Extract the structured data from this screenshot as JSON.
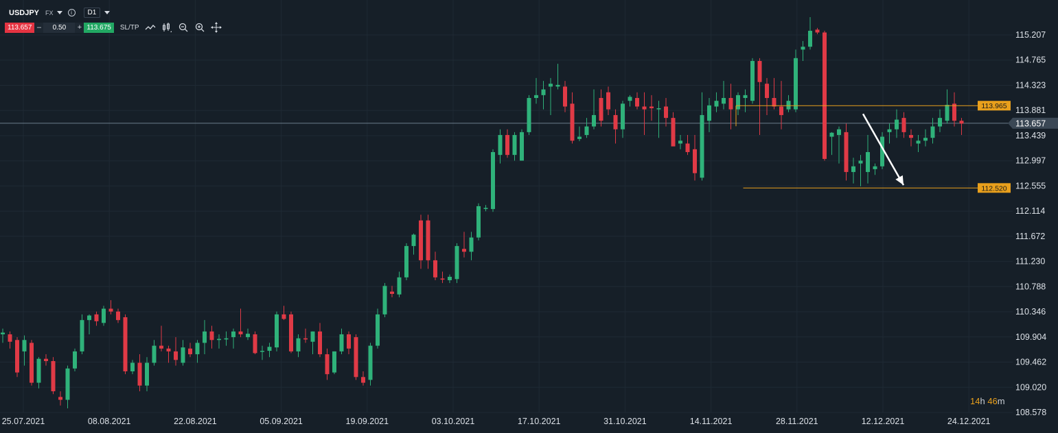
{
  "toolbar": {
    "symbol": "USDJPY",
    "market": "FX",
    "info_icon": "i",
    "timeframe": "D1",
    "bid": "113.657",
    "minus": "–",
    "lot": "0.50",
    "plus": "+",
    "ask": "113.675",
    "sltp": "SL/TP",
    "icons": [
      "line-chart-icon",
      "candles-icon",
      "zoom-out-icon",
      "zoom-in-icon",
      "crosshair-icon"
    ]
  },
  "countdown": {
    "hours": "14",
    "h_unit": "h",
    "minutes": "46",
    "m_unit": "m"
  },
  "chart_data": {
    "type": "candlestick",
    "symbol": "USDJPY",
    "timeframe": "D1",
    "y_ticks": [
      "115.207",
      "114.765",
      "114.323",
      "113.881",
      "113.439",
      "112.997",
      "112.555",
      "112.114",
      "111.672",
      "111.230",
      "110.788",
      "110.346",
      "109.904",
      "109.462",
      "109.020",
      "108.578"
    ],
    "ylim": [
      108.578,
      115.207
    ],
    "x_ticks": [
      "25.07.2021",
      "08.08.2021",
      "22.08.2021",
      "05.09.2021",
      "19.09.2021",
      "03.10.2021",
      "17.10.2021",
      "31.10.2021",
      "14.11.2021",
      "28.11.2021",
      "12.12.2021",
      "24.12.2021"
    ],
    "current_price": {
      "label": "113.657",
      "value": 113.657
    },
    "levels": [
      {
        "label": "113.965",
        "value": 113.965,
        "from_index": 102
      },
      {
        "label": "112.520",
        "value": 112.52,
        "from_index": 103
      }
    ],
    "arrow": {
      "from_index": 118,
      "from_value": 113.82,
      "to_index": 124,
      "to_value": 112.57
    },
    "candles": [
      [
        109.95,
        110.05,
        109.8,
        109.98
      ],
      [
        109.95,
        110.0,
        109.7,
        109.82
      ],
      [
        109.85,
        109.9,
        109.2,
        109.28
      ],
      [
        109.65,
        109.93,
        109.4,
        109.85
      ],
      [
        109.8,
        109.85,
        109.05,
        109.1
      ],
      [
        109.1,
        109.55,
        109.0,
        109.52
      ],
      [
        109.52,
        109.6,
        109.4,
        109.48
      ],
      [
        109.48,
        109.55,
        108.9,
        108.95
      ],
      [
        108.85,
        108.95,
        108.7,
        108.8
      ],
      [
        108.8,
        109.4,
        108.65,
        109.35
      ],
      [
        109.35,
        109.7,
        109.3,
        109.65
      ],
      [
        109.65,
        110.3,
        109.6,
        110.2
      ],
      [
        110.2,
        110.3,
        109.95,
        110.28
      ],
      [
        110.3,
        110.35,
        110.1,
        110.18
      ],
      [
        110.15,
        110.45,
        110.1,
        110.4
      ],
      [
        110.4,
        110.55,
        110.3,
        110.35
      ],
      [
        110.35,
        110.4,
        110.15,
        110.2
      ],
      [
        110.25,
        110.3,
        109.25,
        109.3
      ],
      [
        109.3,
        109.5,
        109.25,
        109.45
      ],
      [
        109.45,
        109.6,
        108.95,
        109.05
      ],
      [
        109.05,
        109.55,
        108.95,
        109.45
      ],
      [
        109.45,
        109.85,
        109.4,
        109.75
      ],
      [
        109.75,
        110.1,
        109.65,
        109.7
      ],
      [
        109.7,
        109.75,
        109.45,
        109.65
      ],
      [
        109.65,
        109.9,
        109.4,
        109.5
      ],
      [
        109.45,
        109.85,
        109.4,
        109.72
      ],
      [
        109.7,
        109.8,
        109.55,
        109.6
      ],
      [
        109.6,
        109.85,
        109.45,
        109.8
      ],
      [
        109.8,
        110.2,
        109.6,
        110.0
      ],
      [
        110.0,
        110.1,
        109.7,
        109.85
      ],
      [
        109.85,
        109.95,
        109.7,
        109.87
      ],
      [
        109.86,
        110.0,
        109.75,
        109.88
      ],
      [
        109.9,
        110.05,
        109.7,
        110.0
      ],
      [
        110.0,
        110.4,
        109.9,
        109.95
      ],
      [
        109.9,
        110.05,
        109.85,
        109.96
      ],
      [
        109.95,
        110.0,
        109.6,
        109.62
      ],
      [
        109.65,
        109.75,
        109.5,
        109.66
      ],
      [
        109.66,
        109.8,
        109.55,
        109.73
      ],
      [
        109.72,
        110.35,
        109.65,
        110.3
      ],
      [
        110.3,
        110.45,
        110.2,
        110.22
      ],
      [
        110.3,
        110.35,
        109.62,
        109.65
      ],
      [
        109.65,
        109.95,
        109.55,
        109.88
      ],
      [
        109.88,
        110.05,
        109.8,
        109.86
      ],
      [
        109.82,
        110.0,
        109.6,
        110.0
      ],
      [
        110.0,
        110.15,
        109.55,
        109.6
      ],
      [
        109.6,
        109.7,
        109.15,
        109.25
      ],
      [
        109.28,
        109.65,
        109.25,
        109.65
      ],
      [
        109.65,
        110.05,
        109.6,
        109.95
      ],
      [
        109.95,
        110.0,
        109.6,
        109.7
      ],
      [
        109.9,
        109.95,
        109.15,
        109.2
      ],
      [
        109.2,
        109.3,
        109.05,
        109.1
      ],
      [
        109.15,
        109.8,
        109.05,
        109.75
      ],
      [
        109.75,
        110.4,
        109.7,
        110.3
      ],
      [
        110.3,
        110.85,
        110.25,
        110.8
      ],
      [
        110.7,
        110.8,
        110.6,
        110.66
      ],
      [
        110.65,
        111.05,
        110.6,
        110.95
      ],
      [
        110.95,
        111.55,
        110.9,
        111.5
      ],
      [
        111.5,
        111.72,
        111.35,
        111.7
      ],
      [
        111.95,
        112.05,
        111.1,
        111.25
      ],
      [
        111.95,
        112.05,
        111.1,
        111.25
      ],
      [
        111.25,
        111.4,
        110.9,
        110.95
      ],
      [
        110.93,
        111.05,
        110.85,
        110.91
      ],
      [
        110.9,
        111.0,
        110.85,
        110.96
      ],
      [
        110.92,
        111.55,
        110.85,
        111.5
      ],
      [
        111.45,
        111.75,
        111.3,
        111.4
      ],
      [
        111.4,
        111.75,
        111.25,
        111.65
      ],
      [
        111.65,
        112.25,
        111.6,
        112.2
      ],
      [
        112.15,
        112.22,
        112.11,
        112.17
      ],
      [
        112.15,
        113.2,
        112.1,
        113.15
      ],
      [
        113.1,
        113.55,
        112.95,
        113.45
      ],
      [
        113.45,
        113.55,
        113.05,
        113.1
      ],
      [
        113.1,
        113.5,
        113.0,
        113.45
      ],
      [
        113.0,
        113.55,
        113.0,
        113.5
      ],
      [
        113.5,
        114.15,
        113.45,
        114.1
      ],
      [
        114.1,
        114.45,
        114.0,
        114.15
      ],
      [
        114.15,
        114.4,
        113.9,
        114.25
      ],
      [
        114.3,
        114.45,
        113.8,
        114.35
      ],
      [
        114.3,
        114.7,
        114.25,
        114.33
      ],
      [
        114.3,
        114.4,
        113.85,
        113.95
      ],
      [
        114.0,
        114.2,
        113.3,
        113.35
      ],
      [
        113.38,
        113.6,
        113.34,
        113.42
      ],
      [
        113.45,
        113.75,
        113.4,
        113.6
      ],
      [
        113.6,
        114.25,
        113.55,
        113.8
      ],
      [
        114.1,
        114.25,
        113.6,
        113.7
      ],
      [
        114.2,
        114.3,
        113.8,
        113.9
      ],
      [
        113.8,
        113.9,
        113.3,
        113.55
      ],
      [
        113.55,
        114.05,
        113.4,
        114.0
      ],
      [
        114.05,
        114.15,
        113.95,
        114.12
      ],
      [
        114.1,
        114.2,
        113.9,
        113.95
      ],
      [
        113.95,
        114.2,
        113.45,
        113.9
      ],
      [
        113.95,
        114.15,
        113.7,
        113.92
      ],
      [
        113.9,
        114.05,
        113.4,
        113.92
      ],
      [
        113.95,
        114.1,
        113.6,
        113.75
      ],
      [
        113.75,
        113.85,
        113.3,
        113.25
      ],
      [
        113.3,
        113.45,
        113.2,
        113.35
      ],
      [
        113.3,
        113.45,
        113.1,
        113.15
      ],
      [
        113.2,
        113.45,
        112.65,
        112.78
      ],
      [
        112.7,
        114.2,
        112.65,
        113.8
      ],
      [
        113.7,
        114.1,
        113.5,
        113.97
      ],
      [
        113.95,
        114.2,
        113.85,
        114.05
      ],
      [
        114.0,
        114.4,
        113.9,
        114.1
      ],
      [
        114.1,
        114.35,
        113.55,
        113.9
      ],
      [
        113.9,
        114.2,
        113.8,
        114.15
      ],
      [
        114.1,
        114.25,
        113.85,
        114.15
      ],
      [
        114.05,
        114.8,
        114.0,
        114.75
      ],
      [
        114.75,
        114.8,
        113.45,
        114.38
      ],
      [
        114.35,
        114.45,
        113.8,
        114.1
      ],
      [
        114.1,
        114.45,
        113.9,
        113.95
      ],
      [
        113.95,
        114.4,
        113.55,
        113.8
      ],
      [
        113.9,
        114.15,
        113.85,
        114.05
      ],
      [
        113.9,
        114.95,
        113.85,
        114.8
      ],
      [
        114.95,
        115.1,
        114.75,
        115.0
      ],
      [
        115.0,
        115.52,
        114.95,
        115.28
      ],
      [
        115.3,
        115.33,
        115.22,
        115.25
      ],
      [
        115.25,
        115.28,
        113.0,
        113.03
      ],
      [
        113.42,
        113.5,
        113.1,
        113.49
      ],
      [
        113.45,
        113.6,
        112.95,
        113.55
      ],
      [
        113.5,
        113.65,
        112.65,
        112.8
      ],
      [
        112.8,
        113.05,
        112.6,
        112.9
      ],
      [
        112.95,
        113.1,
        112.55,
        113.0
      ],
      [
        112.8,
        113.45,
        112.6,
        113.15
      ],
      [
        112.85,
        112.95,
        112.75,
        112.9
      ],
      [
        112.9,
        113.5,
        112.85,
        113.42
      ],
      [
        113.5,
        113.65,
        113.3,
        113.55
      ],
      [
        113.55,
        113.9,
        113.4,
        113.72
      ],
      [
        113.75,
        113.85,
        113.4,
        113.5
      ],
      [
        113.45,
        113.55,
        113.25,
        113.4
      ],
      [
        113.3,
        113.45,
        113.15,
        113.35
      ],
      [
        113.35,
        113.55,
        113.25,
        113.4
      ],
      [
        113.4,
        113.75,
        113.3,
        113.6
      ],
      [
        113.6,
        113.9,
        113.5,
        113.75
      ],
      [
        113.7,
        114.25,
        113.65,
        113.98
      ],
      [
        114.0,
        114.2,
        113.6,
        113.7
      ],
      [
        113.7,
        113.75,
        113.45,
        113.65
      ]
    ]
  },
  "colors": {
    "background": "#161f28",
    "grid": "#1f2a34",
    "bull": "#2fb27a",
    "bear": "#e03a46",
    "level": "#e9a01c",
    "current_line": "#6e7f8c",
    "axis_text": "#dde2e8",
    "arrow": "#ffffff",
    "countdown": "#e9a01c"
  }
}
